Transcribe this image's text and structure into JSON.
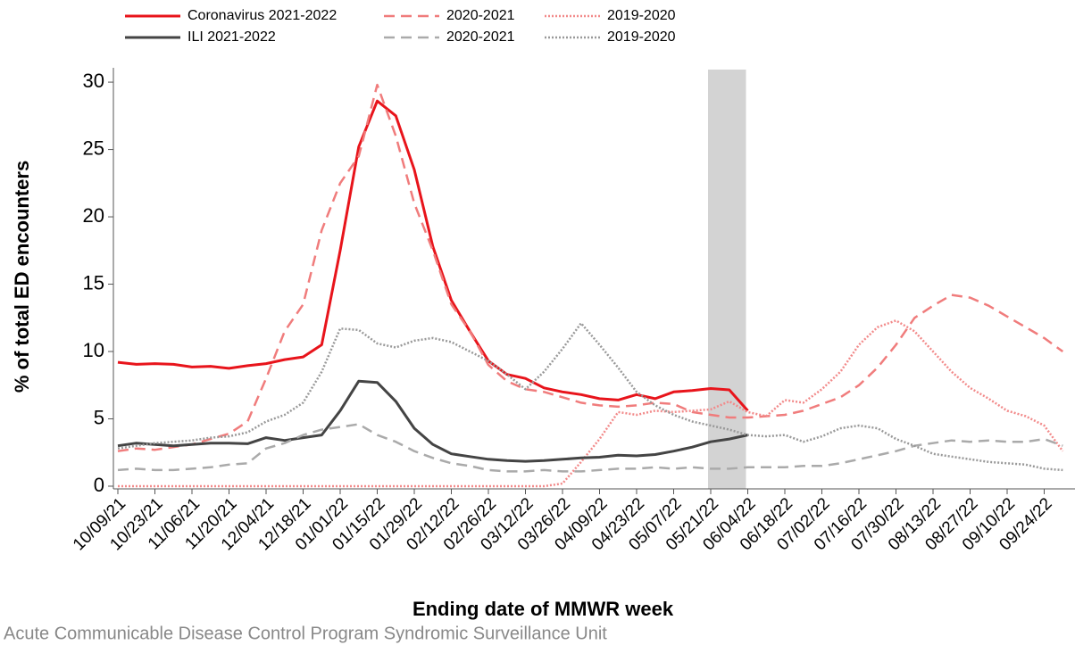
{
  "chart_data": {
    "type": "line",
    "y_label": "% of total ED encounters",
    "x_label": "Ending date of MMWR week",
    "source": "Acute Communicable Disease Control Program Syndromic Surveillance Unit",
    "categories": [
      "10/09/21",
      null,
      "10/23/21",
      null,
      "11/06/21",
      null,
      "11/20/21",
      null,
      "12/04/21",
      null,
      "12/18/21",
      null,
      "01/01/22",
      null,
      "01/15/22",
      null,
      "01/29/22",
      null,
      "02/12/22",
      null,
      "02/26/22",
      null,
      "03/12/22",
      null,
      "03/26/22",
      null,
      "04/09/22",
      null,
      "04/23/22",
      null,
      "05/07/22",
      null,
      "05/21/22",
      null,
      "06/04/22",
      null,
      "06/18/22",
      null,
      "07/02/22",
      null,
      "07/16/22",
      null,
      "07/30/22",
      null,
      "08/13/22",
      null,
      "08/27/22",
      null,
      "09/10/22",
      null,
      "09/24/22",
      null
    ],
    "ylim": [
      -0.2,
      30.8
    ],
    "yticks": [
      0,
      5,
      10,
      15,
      20,
      25,
      30
    ],
    "series": [
      {
        "name": "Coronavirus 2021-2022",
        "color": "#e8141b",
        "dash": "solid",
        "values": [
          9.2,
          9.05,
          9.1,
          9.05,
          8.85,
          8.9,
          8.75,
          8.95,
          9.1,
          9.4,
          9.6,
          10.5,
          17.5,
          25.2,
          28.6,
          27.5,
          23.5,
          17.8,
          13.8,
          11.5,
          9.3,
          8.3,
          8.0,
          7.3,
          7.0,
          6.8,
          6.5,
          6.4,
          6.8,
          6.5,
          7.0,
          7.1,
          7.25,
          7.15,
          5.6,
          null,
          null,
          null,
          null,
          null,
          null,
          null,
          null,
          null,
          null,
          null,
          null,
          null,
          null,
          null,
          null,
          null
        ]
      },
      {
        "name": "2020-2021",
        "color": "#f07c7c",
        "dash": "dashed",
        "values": [
          2.6,
          2.8,
          2.7,
          2.9,
          3.1,
          3.5,
          3.9,
          4.8,
          8.0,
          11.5,
          13.5,
          19.0,
          22.5,
          24.5,
          29.8,
          26.0,
          21.0,
          17.5,
          13.5,
          11.5,
          9.0,
          7.8,
          7.2,
          7.0,
          6.6,
          6.2,
          6.0,
          5.9,
          6.0,
          6.2,
          6.1,
          5.5,
          5.3,
          5.1,
          5.1,
          5.2,
          5.3,
          5.6,
          6.1,
          6.6,
          7.5,
          8.8,
          10.5,
          12.5,
          13.4,
          14.2,
          14.0,
          13.4,
          12.6,
          11.8,
          11.0,
          10.0
        ]
      },
      {
        "name": "2019-2020",
        "color": "#f28a8a",
        "dash": "dotted",
        "values": [
          0,
          0,
          0,
          0,
          0,
          0,
          0,
          0,
          0,
          0,
          0,
          0,
          0,
          0,
          0,
          0,
          0,
          0,
          0,
          0,
          0,
          0,
          0,
          0,
          0.2,
          1.8,
          3.5,
          5.5,
          5.3,
          5.6,
          5.5,
          5.6,
          5.7,
          6.3,
          5.5,
          5.2,
          6.4,
          6.2,
          7.2,
          8.5,
          10.5,
          11.8,
          12.3,
          11.5,
          10.0,
          8.5,
          7.3,
          6.5,
          5.6,
          5.2,
          4.5,
          2.6
        ]
      },
      {
        "name": "ILI 2021-2022",
        "color": "#444444",
        "dash": "solid",
        "values": [
          3.0,
          3.2,
          3.1,
          3.0,
          3.1,
          3.2,
          3.2,
          3.15,
          3.6,
          3.4,
          3.6,
          3.8,
          5.6,
          7.8,
          7.7,
          6.3,
          4.3,
          3.1,
          2.4,
          2.2,
          2.0,
          1.9,
          1.85,
          1.9,
          2.0,
          2.1,
          2.15,
          2.3,
          2.25,
          2.35,
          2.6,
          2.9,
          3.3,
          3.5,
          3.8,
          null,
          null,
          null,
          null,
          null,
          null,
          null,
          null,
          null,
          null,
          null,
          null,
          null,
          null,
          null,
          null,
          null
        ]
      },
      {
        "name": "2020-2021",
        "color": "#aaaaaa",
        "dash": "dashed",
        "values": [
          1.2,
          1.3,
          1.2,
          1.2,
          1.3,
          1.4,
          1.6,
          1.7,
          2.8,
          3.2,
          3.8,
          4.2,
          4.4,
          4.6,
          3.8,
          3.3,
          2.6,
          2.1,
          1.7,
          1.5,
          1.2,
          1.1,
          1.1,
          1.2,
          1.1,
          1.1,
          1.2,
          1.3,
          1.3,
          1.4,
          1.3,
          1.4,
          1.3,
          1.3,
          1.4,
          1.4,
          1.4,
          1.5,
          1.5,
          1.7,
          2.0,
          2.3,
          2.6,
          3.0,
          3.2,
          3.4,
          3.3,
          3.4,
          3.3,
          3.3,
          3.5,
          3.0
        ]
      },
      {
        "name": "2019-2020",
        "color": "#999999",
        "dash": "dotted",
        "values": [
          2.8,
          3.0,
          3.2,
          3.3,
          3.4,
          3.6,
          3.7,
          4.0,
          4.8,
          5.3,
          6.2,
          8.5,
          11.7,
          11.6,
          10.6,
          10.3,
          10.8,
          11.0,
          10.7,
          10.0,
          9.3,
          8.3,
          7.2,
          8.5,
          10.2,
          12.1,
          10.5,
          8.8,
          7.0,
          6.0,
          5.3,
          4.8,
          4.5,
          4.2,
          3.8,
          3.7,
          3.8,
          3.3,
          3.7,
          4.3,
          4.5,
          4.3,
          3.5,
          3.0,
          2.4,
          2.2,
          2.0,
          1.8,
          1.7,
          1.6,
          1.3,
          1.2
        ]
      }
    ]
  }
}
